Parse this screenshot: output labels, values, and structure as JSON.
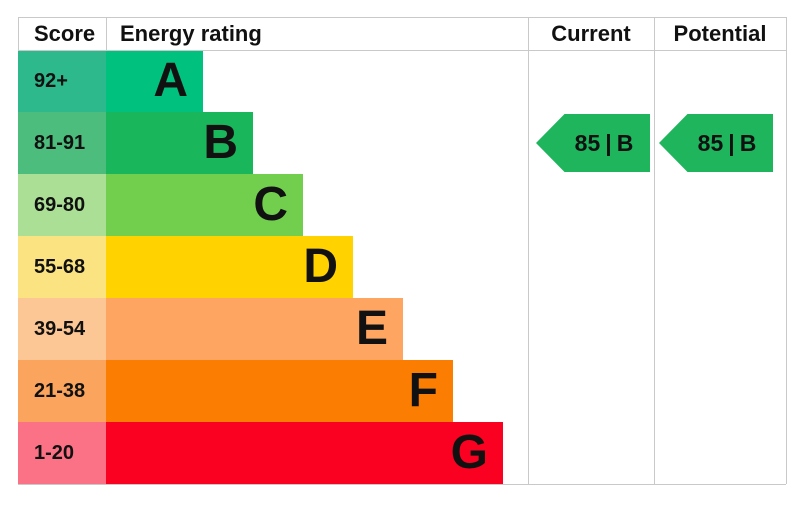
{
  "header": {
    "score": "Score",
    "energy_rating": "Energy rating",
    "current": "Current",
    "potential": "Potential"
  },
  "bands": [
    {
      "letter": "A",
      "score": "92+",
      "bar_color": "#00c17e",
      "score_bg": "#2eb98c"
    },
    {
      "letter": "B",
      "score": "81-91",
      "bar_color": "#1ab65b",
      "score_bg": "#4cbd7d"
    },
    {
      "letter": "C",
      "score": "69-80",
      "bar_color": "#72cf4e",
      "score_bg": "#abdf96"
    },
    {
      "letter": "D",
      "score": "55-68",
      "bar_color": "#ffd200",
      "score_bg": "#fbe382"
    },
    {
      "letter": "E",
      "score": "39-54",
      "bar_color": "#fda561",
      "score_bg": "#fcc795"
    },
    {
      "letter": "F",
      "score": "21-38",
      "bar_color": "#fb7d02",
      "score_bg": "#fba45e"
    },
    {
      "letter": "G",
      "score": "1-20",
      "bar_color": "#fb0121",
      "score_bg": "#fb7185"
    }
  ],
  "arrows": {
    "separator": "|",
    "current": {
      "value": "85",
      "band": "B",
      "color": "#1eb55c"
    },
    "potential": {
      "value": "85",
      "band": "B",
      "color": "#1eb55c"
    }
  },
  "colors": {
    "border": "#c9c9c9",
    "text": "#111111",
    "background": "#ffffff"
  },
  "chart_data": {
    "type": "bar",
    "title": "Energy rating (EPC)",
    "categories": [
      "A",
      "B",
      "C",
      "D",
      "E",
      "F",
      "G"
    ],
    "score_ranges": [
      "92+",
      "81-91",
      "69-80",
      "55-68",
      "39-54",
      "21-38",
      "1-20"
    ],
    "columns": [
      "Score",
      "Energy rating",
      "Current",
      "Potential"
    ],
    "current": {
      "score": 85,
      "band": "B"
    },
    "potential": {
      "score": 85,
      "band": "B"
    },
    "legend_position": "none",
    "grid": false
  }
}
